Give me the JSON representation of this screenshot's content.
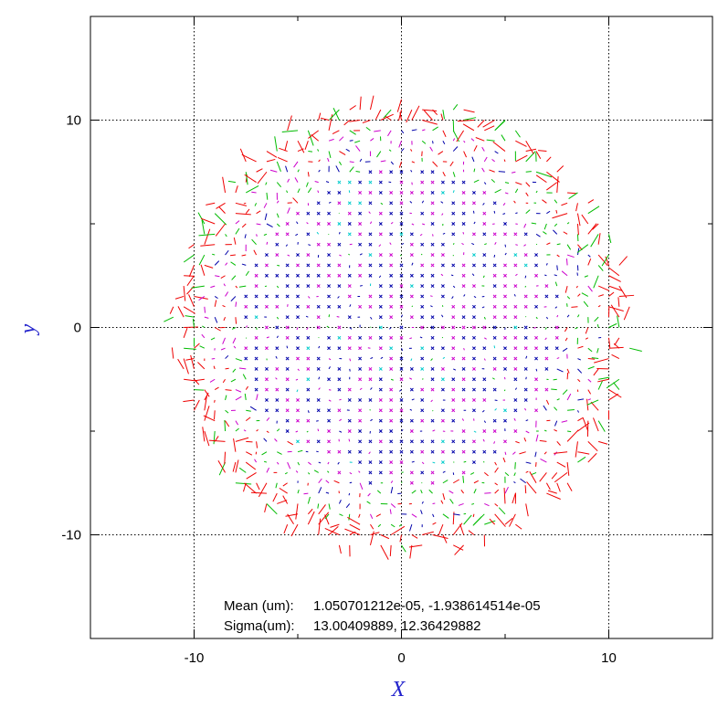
{
  "chart_data": {
    "type": "scatter",
    "xlabel": "X",
    "ylabel": "y",
    "xlim": [
      -15,
      15
    ],
    "ylim": [
      -15,
      15
    ],
    "xticks": [
      -10,
      0,
      10
    ],
    "yticks": [
      -10,
      0,
      10
    ],
    "grid": true,
    "field": {
      "description_of_points": "vector residual map on regular grid inside circular field",
      "grid_step": 0.5,
      "field_radius": 11,
      "colors": {
        "small": "#0000aa",
        "cross": "#cc00cc",
        "medium": "#00bb00",
        "large": "#ee0000",
        "cyan": "#00cccc"
      }
    },
    "annotations": [
      {
        "label": "Mean (um):",
        "value": "1.050701212e-05, -1.938614514e-05"
      },
      {
        "label": "Sigma(um):",
        "value": "13.00409889, 12.36429882"
      }
    ]
  }
}
